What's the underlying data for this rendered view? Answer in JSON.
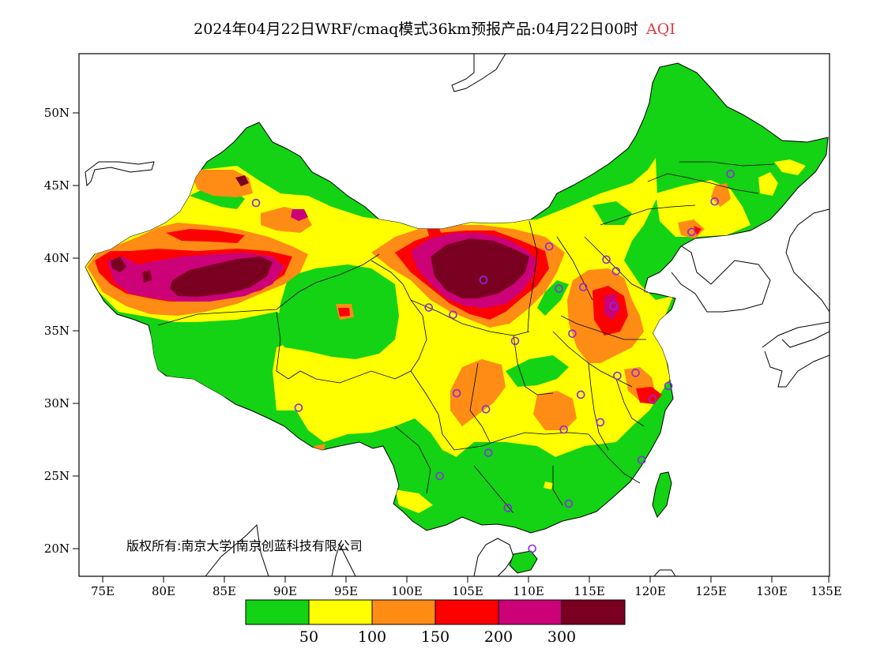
{
  "title": {
    "main": "2024年04月22日WRF/cmaq模式36km预报产品:04月22日00时",
    "variable": "AQI"
  },
  "axes": {
    "x_ticks": [
      "75E",
      "80E",
      "85E",
      "90E",
      "95E",
      "100E",
      "105E",
      "110E",
      "115E",
      "120E",
      "125E",
      "130E",
      "135E"
    ],
    "y_ticks": [
      "50N",
      "45N",
      "40N",
      "35N",
      "30N",
      "25N",
      "20N"
    ]
  },
  "copyright": "版权所有:南京大学|南京创蓝科技有限公司",
  "legend": {
    "colors": [
      "#14d214",
      "#ffff00",
      "#ff8c14",
      "#ff0000",
      "#cc0077",
      "#7a0022"
    ],
    "labels": [
      "50",
      "100",
      "150",
      "200",
      "300"
    ]
  },
  "colors": {
    "good": "#14d214",
    "moderate": "#ffff00",
    "usg": "#ff8c14",
    "unhealthy": "#ff0000",
    "very_unhealthy": "#cc0077",
    "hazardous": "#7a0022",
    "station_marker": "#8a2be2"
  },
  "map_extent": {
    "lon": [
      73,
      135
    ],
    "lat": [
      18,
      54
    ]
  },
  "stations": [
    {
      "lon": 87.6,
      "lat": 43.8
    },
    {
      "lon": 91.1,
      "lat": 29.7
    },
    {
      "lon": 101.8,
      "lat": 36.6
    },
    {
      "lon": 103.8,
      "lat": 36.1
    },
    {
      "lon": 106.3,
      "lat": 38.5
    },
    {
      "lon": 108.9,
      "lat": 34.3
    },
    {
      "lon": 111.7,
      "lat": 40.8
    },
    {
      "lon": 112.5,
      "lat": 37.9
    },
    {
      "lon": 114.5,
      "lat": 38.0
    },
    {
      "lon": 116.4,
      "lat": 39.9
    },
    {
      "lon": 117.2,
      "lat": 39.1
    },
    {
      "lon": 117.0,
      "lat": 36.7
    },
    {
      "lon": 113.6,
      "lat": 34.8
    },
    {
      "lon": 114.3,
      "lat": 30.6
    },
    {
      "lon": 112.9,
      "lat": 28.2
    },
    {
      "lon": 115.9,
      "lat": 28.7
    },
    {
      "lon": 117.3,
      "lat": 31.9
    },
    {
      "lon": 118.8,
      "lat": 32.1
    },
    {
      "lon": 120.2,
      "lat": 30.3
    },
    {
      "lon": 121.5,
      "lat": 31.2
    },
    {
      "lon": 119.3,
      "lat": 26.1
    },
    {
      "lon": 113.3,
      "lat": 23.1
    },
    {
      "lon": 108.3,
      "lat": 22.8
    },
    {
      "lon": 110.3,
      "lat": 20.0
    },
    {
      "lon": 102.7,
      "lat": 25.0
    },
    {
      "lon": 106.7,
      "lat": 26.6
    },
    {
      "lon": 104.1,
      "lat": 30.7
    },
    {
      "lon": 106.5,
      "lat": 29.6
    },
    {
      "lon": 123.4,
      "lat": 41.8
    },
    {
      "lon": 125.3,
      "lat": 43.9
    },
    {
      "lon": 126.6,
      "lat": 45.8
    }
  ]
}
